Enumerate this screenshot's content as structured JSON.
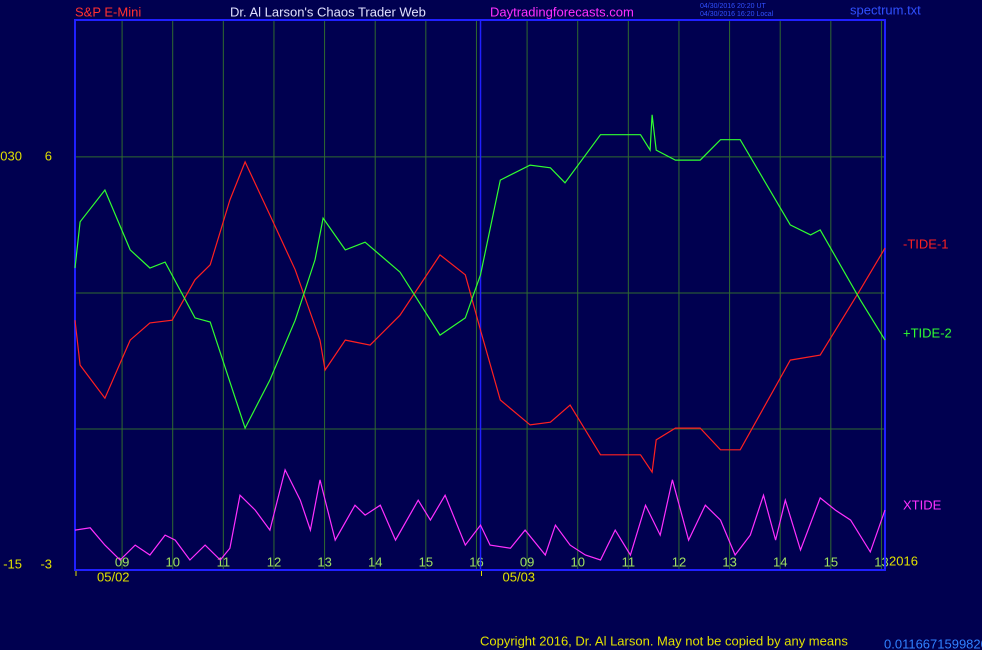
{
  "chart_data": {
    "type": "line",
    "instrument": "S&P E-Mini",
    "title": "Dr. Al Larson's Chaos Trader Web",
    "site": "Daytradingforecasts.com",
    "timestamp_ut": "04/30/2016 20:20 UT",
    "timestamp_local": "04/30/2016 16:20 Local",
    "file": "spectrum.txt",
    "copyright": "Copyright 2016, Dr. Al Larson. May not be copied by any means",
    "footer_code": "0.0116671599820",
    "year": "2016",
    "xlim": [
      -0.93,
      15.07
    ],
    "ylim": [
      -3.11,
      9.02
    ],
    "y2lim": [
      -15.55,
      45.1
    ],
    "grid": true,
    "yticks": [
      6,
      {
        "value": 3,
        "label": null
      },
      {
        "value": 0,
        "label": null
      },
      -3
    ],
    "y2ticks": [
      {
        "value": 30,
        "label": "030"
      },
      -15
    ],
    "xticks": [
      {
        "value": 0,
        "label": "09"
      },
      {
        "value": 1,
        "label": "10"
      },
      {
        "value": 2,
        "label": "11"
      },
      {
        "value": 3,
        "label": "12"
      },
      {
        "value": 4,
        "label": "13"
      },
      {
        "value": 5,
        "label": "14"
      },
      {
        "value": 6,
        "label": "15"
      },
      {
        "value": 7,
        "label": "16"
      },
      {
        "value": 8,
        "label": "09"
      },
      {
        "value": 9,
        "label": "10"
      },
      {
        "value": 10,
        "label": "11"
      },
      {
        "value": 11,
        "label": "12"
      },
      {
        "value": 12,
        "label": "13"
      },
      {
        "value": 13,
        "label": "14"
      },
      {
        "value": 14,
        "label": "15"
      },
      {
        "value": 15,
        "label": "13"
      }
    ],
    "dates": [
      {
        "value": -0.93,
        "label": "05/02"
      },
      {
        "value": 7.08,
        "label": "05/03"
      }
    ],
    "series": [
      {
        "name": "-TIDE-1",
        "color": "#ff2020",
        "x": [
          -0.93,
          -0.83,
          -0.34,
          0.16,
          0.55,
          0.99,
          1.44,
          1.74,
          2.13,
          2.43,
          2.92,
          3.42,
          3.91,
          4.01,
          4.41,
          4.9,
          5.49,
          6.28,
          6.78,
          7.08,
          7.47,
          8.06,
          8.46,
          8.85,
          9.45,
          10.24,
          10.47,
          10.55,
          10.93,
          11.42,
          11.82,
          12.21,
          13.2,
          13.79,
          14.58,
          15.07
        ],
        "values": [
          2.4,
          1.41,
          0.68,
          1.96,
          2.34,
          2.4,
          3.29,
          3.62,
          5.05,
          5.89,
          4.72,
          3.51,
          1.96,
          1.3,
          1.96,
          1.85,
          2.51,
          3.84,
          3.4,
          2.18,
          0.64,
          0.09,
          0.15,
          0.53,
          -0.57,
          -0.57,
          -0.95,
          -0.24,
          0.02,
          0.02,
          -0.46,
          -0.46,
          1.52,
          1.63,
          3.07,
          3.99
        ]
      },
      {
        "name": "+TIDE-2",
        "color": "#30ff30",
        "x": [
          -0.93,
          -0.83,
          -0.34,
          0.16,
          0.55,
          0.85,
          1.44,
          1.74,
          2.43,
          2.92,
          3.42,
          3.81,
          3.97,
          4.41,
          4.8,
          5.49,
          6.28,
          6.78,
          7.08,
          7.47,
          8.06,
          8.46,
          8.75,
          9.45,
          10.24,
          10.43,
          10.47,
          10.55,
          10.93,
          11.42,
          11.82,
          12.21,
          13.2,
          13.6,
          13.79,
          14.58,
          15.07
        ],
        "values": [
          3.55,
          4.57,
          5.27,
          3.95,
          3.55,
          3.68,
          2.45,
          2.36,
          0.02,
          1.08,
          2.4,
          3.73,
          4.65,
          3.95,
          4.12,
          3.46,
          2.07,
          2.45,
          3.4,
          5.49,
          5.82,
          5.76,
          5.43,
          6.49,
          6.49,
          6.15,
          6.93,
          6.15,
          5.93,
          5.93,
          6.38,
          6.38,
          4.5,
          4.28,
          4.39,
          2.85,
          1.96
        ]
      },
      {
        "name": "XTIDE",
        "color": "#ff30ff",
        "x": [
          -0.93,
          -0.63,
          -0.34,
          -0.04,
          0.26,
          0.55,
          0.85,
          1.05,
          1.34,
          1.64,
          1.94,
          2.13,
          2.33,
          2.63,
          2.92,
          3.22,
          3.52,
          3.72,
          3.91,
          4.21,
          4.6,
          4.8,
          5.1,
          5.4,
          5.85,
          6.09,
          6.38,
          6.78,
          7.08,
          7.27,
          7.67,
          7.96,
          8.36,
          8.56,
          8.85,
          9.15,
          9.45,
          9.74,
          10.04,
          10.34,
          10.63,
          10.87,
          11.19,
          11.52,
          11.82,
          12.11,
          12.41,
          12.67,
          12.91,
          13.1,
          13.4,
          13.79,
          14.09,
          14.39,
          14.78,
          15.07
        ],
        "values": [
          -2.23,
          -2.18,
          -2.56,
          -2.89,
          -2.56,
          -2.78,
          -2.34,
          -2.45,
          -2.89,
          -2.56,
          -2.89,
          -2.63,
          -1.46,
          -1.79,
          -2.23,
          -0.9,
          -1.57,
          -2.23,
          -1.12,
          -2.45,
          -1.68,
          -1.9,
          -1.68,
          -2.45,
          -1.57,
          -2.01,
          -1.46,
          -2.56,
          -2.12,
          -2.56,
          -2.63,
          -2.23,
          -2.78,
          -2.12,
          -2.56,
          -2.78,
          -2.89,
          -2.23,
          -2.78,
          -1.68,
          -2.34,
          -1.12,
          -2.45,
          -1.68,
          -2.01,
          -2.78,
          -2.34,
          -1.46,
          -2.45,
          -1.57,
          -2.67,
          -1.52,
          -1.79,
          -2.01,
          -2.71,
          -1.79
        ]
      }
    ]
  }
}
